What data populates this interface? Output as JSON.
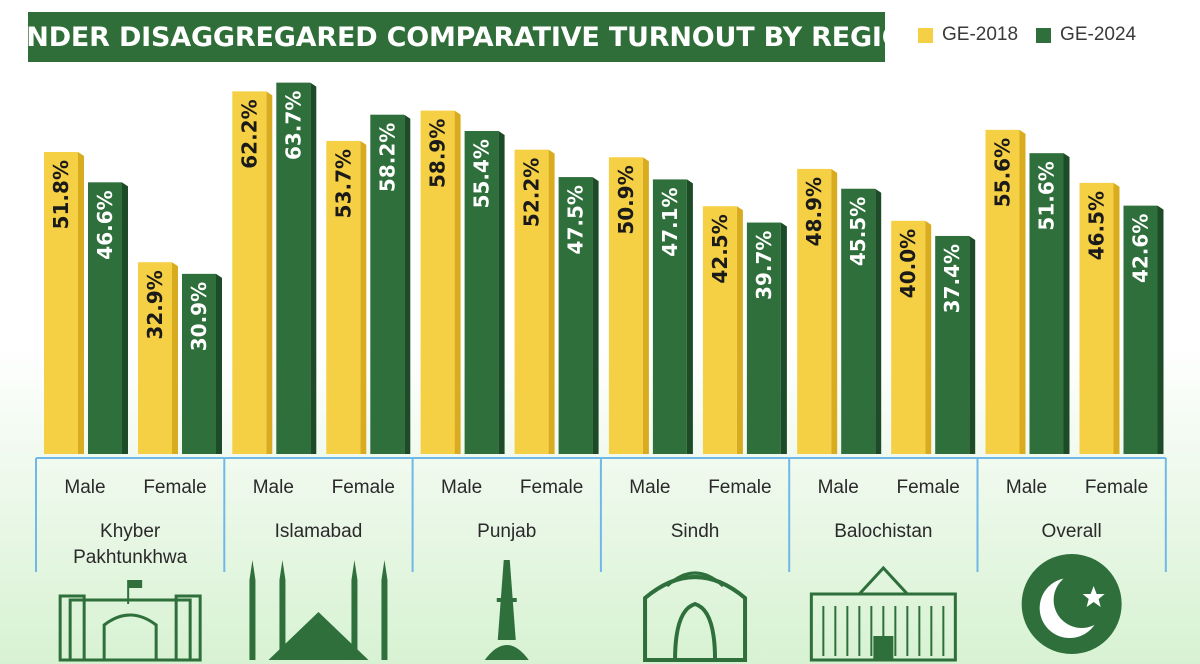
{
  "title": "GENDER DISAGGREGARED COMPARATIVE TURNOUT BY REGION",
  "legend": [
    {
      "label": "GE-2018",
      "color": "#f5cf44"
    },
    {
      "label": "GE-2024",
      "color": "#2e6f3b"
    }
  ],
  "colors": {
    "ge2018": "#f5cf44",
    "ge2018_side": "#d9ab1f",
    "ge2024": "#2e6f3b",
    "ge2024_side": "#1e4b27",
    "bracket": "#6fb8e8"
  },
  "chart_data": {
    "type": "bar",
    "title": "GENDER DISAGGREGARED COMPARATIVE TURNOUT BY REGION",
    "ylim": [
      0,
      70
    ],
    "groups": [
      {
        "region": "Khyber Pakhtunkhwa",
        "icon": "khyber-pass-gate-icon",
        "categories": [
          {
            "gender": "Male",
            "values": [
              {
                "series": "GE-2018",
                "value": 51.8,
                "label": "51.8%"
              },
              {
                "series": "GE-2024",
                "value": 46.6,
                "label": "46.6%"
              }
            ]
          },
          {
            "gender": "Female",
            "values": [
              {
                "series": "GE-2018",
                "value": 32.9,
                "label": "32.9%"
              },
              {
                "series": "GE-2024",
                "value": 30.9,
                "label": "30.9%"
              }
            ]
          }
        ]
      },
      {
        "region": "Islamabad",
        "icon": "faisal-mosque-icon",
        "categories": [
          {
            "gender": "Male",
            "values": [
              {
                "series": "GE-2018",
                "value": 62.2,
                "label": "62.2%"
              },
              {
                "series": "GE-2024",
                "value": 63.7,
                "label": "63.7%"
              }
            ]
          },
          {
            "gender": "Female",
            "values": [
              {
                "series": "GE-2018",
                "value": 53.7,
                "label": "53.7%"
              },
              {
                "series": "GE-2024",
                "value": 58.2,
                "label": "58.2%"
              }
            ]
          }
        ]
      },
      {
        "region": "Punjab",
        "icon": "minar-e-pakistan-icon",
        "categories": [
          {
            "gender": "Male",
            "values": [
              {
                "series": "GE-2018",
                "value": 58.9,
                "label": "58.9%"
              },
              {
                "series": "GE-2024",
                "value": 55.4,
                "label": "55.4%"
              }
            ]
          },
          {
            "gender": "Female",
            "values": [
              {
                "series": "GE-2018",
                "value": 52.2,
                "label": "52.2%"
              },
              {
                "series": "GE-2024",
                "value": 47.5,
                "label": "47.5%"
              }
            ]
          }
        ]
      },
      {
        "region": "Sindh",
        "icon": "mazar-e-quaid-icon",
        "categories": [
          {
            "gender": "Male",
            "values": [
              {
                "series": "GE-2018",
                "value": 50.9,
                "label": "50.9%"
              },
              {
                "series": "GE-2024",
                "value": 47.1,
                "label": "47.1%"
              }
            ]
          },
          {
            "gender": "Female",
            "values": [
              {
                "series": "GE-2018",
                "value": 42.5,
                "label": "42.5%"
              },
              {
                "series": "GE-2024",
                "value": 39.7,
                "label": "39.7%"
              }
            ]
          }
        ]
      },
      {
        "region": "Balochistan",
        "icon": "balochistan-assembly-icon",
        "categories": [
          {
            "gender": "Male",
            "values": [
              {
                "series": "GE-2018",
                "value": 48.9,
                "label": "48.9%"
              },
              {
                "series": "GE-2024",
                "value": 45.5,
                "label": "45.5%"
              }
            ]
          },
          {
            "gender": "Female",
            "values": [
              {
                "series": "GE-2018",
                "value": 40.0,
                "label": "40.0%"
              },
              {
                "series": "GE-2024",
                "value": 37.4,
                "label": "37.4%"
              }
            ]
          }
        ]
      },
      {
        "region": "Overall",
        "icon": "pakistan-flag-icon",
        "categories": [
          {
            "gender": "Male",
            "values": [
              {
                "series": "GE-2018",
                "value": 55.6,
                "label": "55.6%"
              },
              {
                "series": "GE-2024",
                "value": 51.6,
                "label": "51.6%"
              }
            ]
          },
          {
            "gender": "Female",
            "values": [
              {
                "series": "GE-2018",
                "value": 46.5,
                "label": "46.5%"
              },
              {
                "series": "GE-2024",
                "value": 42.6,
                "label": "42.6%"
              }
            ]
          }
        ]
      }
    ]
  }
}
